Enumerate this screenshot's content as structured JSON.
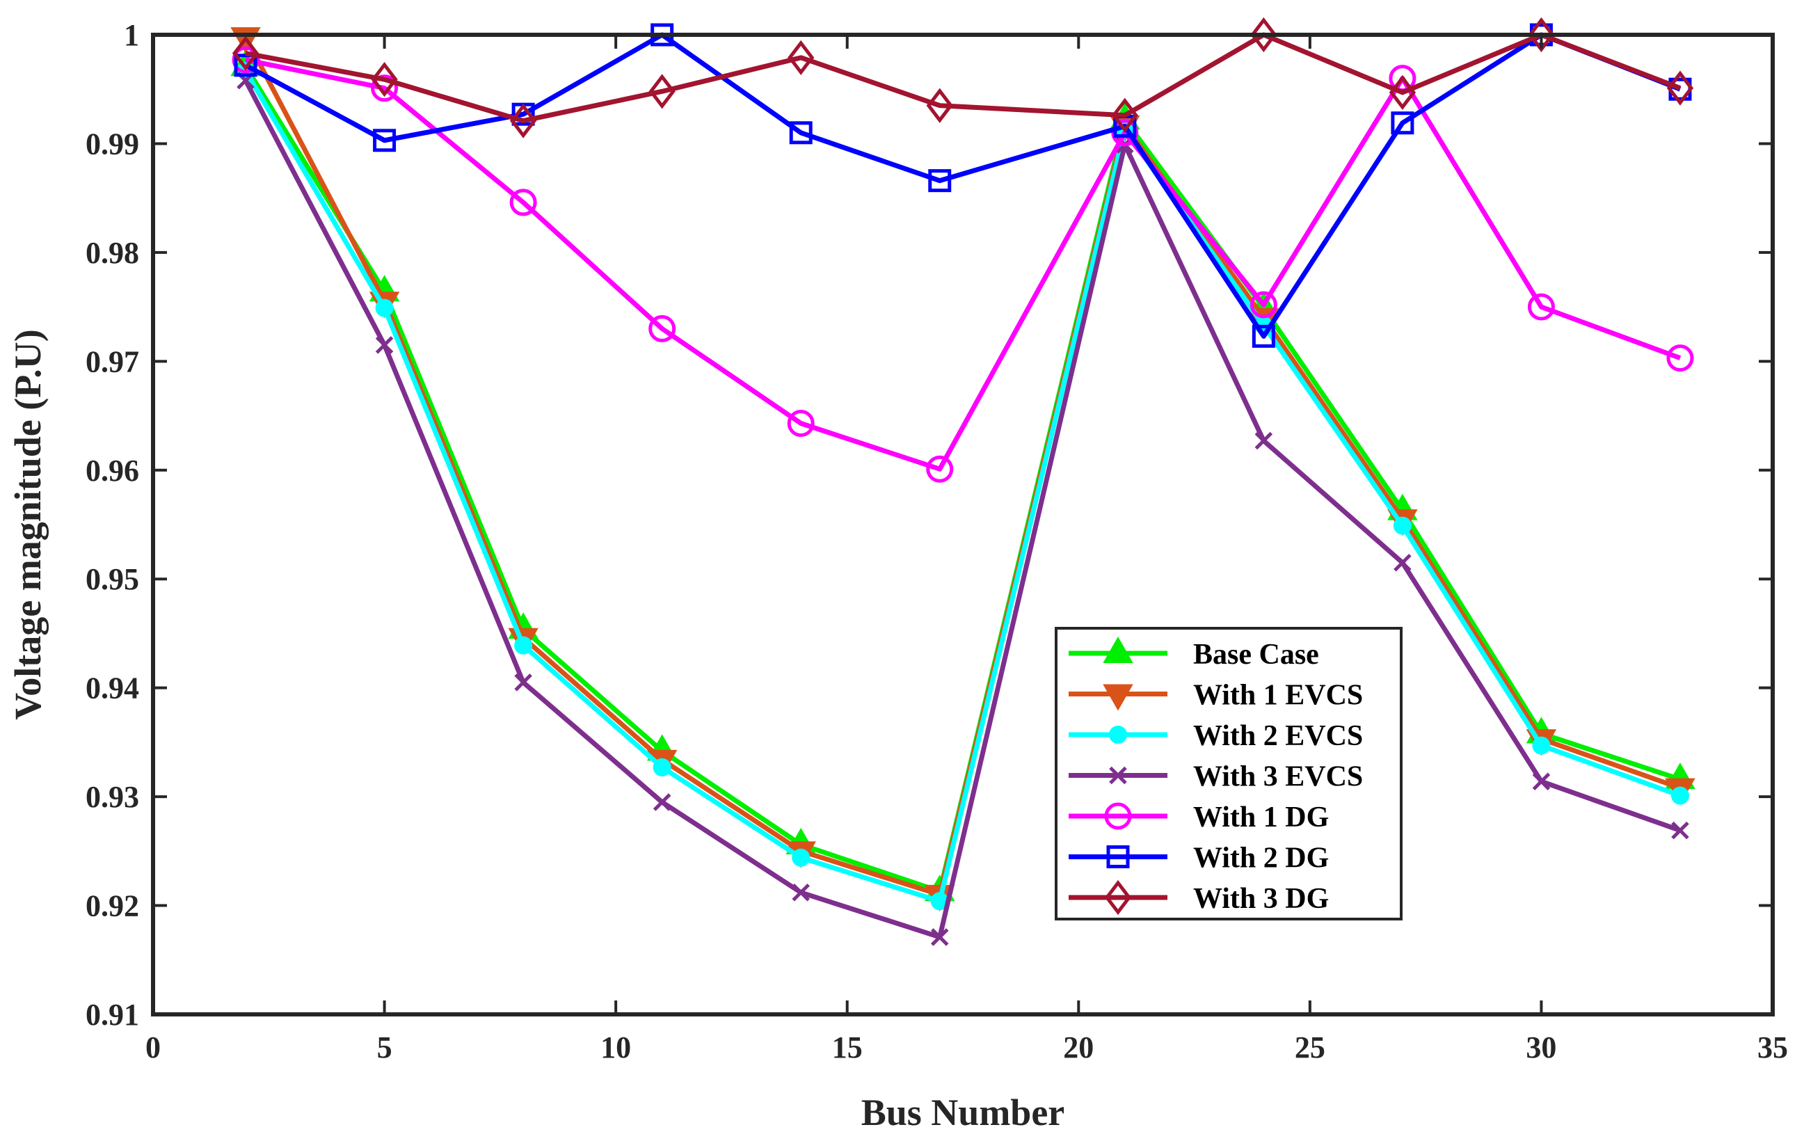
{
  "chart_data": {
    "type": "line",
    "xlabel": "Bus Number",
    "ylabel": "Voltage magnitude (P.U)",
    "xlim": [
      0,
      35
    ],
    "ylim": [
      0.91,
      1.0
    ],
    "xticks": [
      0,
      5,
      10,
      15,
      20,
      25,
      30,
      35
    ],
    "yticks": [
      0.91,
      0.92,
      0.93,
      0.94,
      0.95,
      0.96,
      0.97,
      0.98,
      0.99,
      1.0
    ],
    "xtick_labels": [
      "0",
      "5",
      "10",
      "15",
      "20",
      "25",
      "30",
      "35"
    ],
    "ytick_labels": [
      "0.91",
      "0.92",
      "0.93",
      "0.94",
      "0.95",
      "0.96",
      "0.97",
      "0.98",
      "0.99",
      "1"
    ],
    "grid": false,
    "legend_position": "lower-center",
    "x": [
      2,
      5,
      8,
      11,
      14,
      17,
      21,
      24,
      27,
      30,
      33
    ],
    "series": [
      {
        "name": "Base Case",
        "color": "#00ee00",
        "marker": "triangle-up",
        "values": [
          0.9971,
          0.9764,
          0.9454,
          0.9342,
          0.9256,
          0.9213,
          0.9922,
          0.9749,
          0.9563,
          0.9358,
          0.9316
        ]
      },
      {
        "name": "With 1 EVCS",
        "color": "#d95319",
        "marker": "triangle-down",
        "values": [
          0.9998,
          0.9755,
          0.9446,
          0.9334,
          0.925,
          0.921,
          0.9917,
          0.974,
          0.9555,
          0.9353,
          0.9308
        ]
      },
      {
        "name": "With 2 EVCS",
        "color": "#00ffff",
        "marker": "circle-filled",
        "values": [
          0.9967,
          0.9749,
          0.9439,
          0.9327,
          0.9244,
          0.9204,
          0.9913,
          0.9733,
          0.9549,
          0.9347,
          0.9301
        ]
      },
      {
        "name": "With 3 EVCS",
        "color": "#7e2f8e",
        "marker": "x",
        "values": [
          0.9958,
          0.9715,
          0.9405,
          0.9295,
          0.9212,
          0.9171,
          0.9899,
          0.9627,
          0.9515,
          0.9314,
          0.9269
        ]
      },
      {
        "name": "With 1 DG",
        "color": "#ff00ff",
        "marker": "circle-open",
        "values": [
          0.9977,
          0.9951,
          0.9846,
          0.973,
          0.9643,
          0.9601,
          0.991,
          0.9752,
          0.996,
          0.975,
          0.9703
        ]
      },
      {
        "name": "With 2 DG",
        "color": "#0000ff",
        "marker": "square",
        "values": [
          0.9972,
          0.9903,
          0.9927,
          1.0,
          0.991,
          0.9866,
          0.9916,
          0.9723,
          0.9919,
          1.0,
          0.995
        ]
      },
      {
        "name": "With 3 DG",
        "color": "#a2142f",
        "marker": "diamond",
        "values": [
          0.9983,
          0.9959,
          0.9921,
          0.9948,
          0.9979,
          0.9935,
          0.9926,
          1.0,
          0.9947,
          1.0,
          0.9951
        ]
      }
    ]
  }
}
